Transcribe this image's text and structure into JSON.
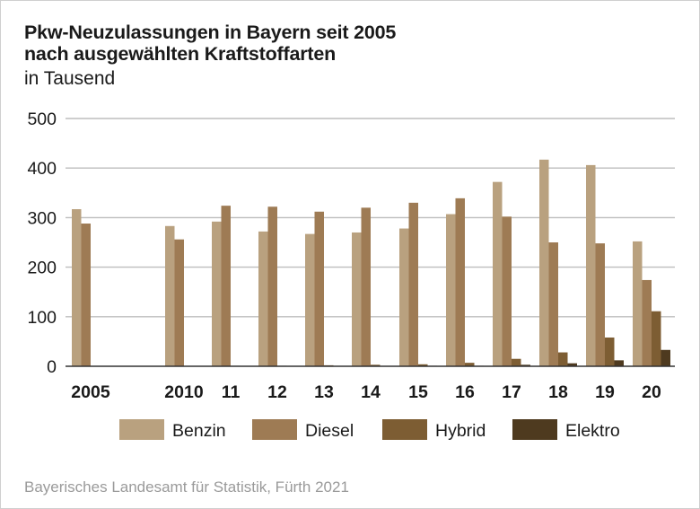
{
  "header": {
    "title_line1": "Pkw-Neuzulassungen in Bayern seit 2005",
    "title_line2": "nach ausgewählten Kraftstoffarten",
    "subtitle": "in Tausend"
  },
  "footer": {
    "source": "Bayerisches Landesamt für Statistik, Fürth 2021"
  },
  "colors": {
    "Benzin": "#b9a17f",
    "Diesel": "#9e7b54",
    "Hybrid": "#7d5d33",
    "Elektro": "#4e3a1f",
    "grid": "#bdbdbd",
    "axis": "#333333"
  },
  "chart_data": {
    "type": "bar",
    "title": "Pkw-Neuzulassungen in Bayern seit 2005 nach ausgewählten Kraftstoffarten",
    "subtitle": "in Tausend",
    "xlabel": "",
    "ylabel": "",
    "ylim": [
      0,
      500
    ],
    "yticks": [
      0,
      100,
      200,
      300,
      400,
      500
    ],
    "grid": true,
    "legend_position": "bottom",
    "categories": [
      "2005",
      "2010",
      "11",
      "12",
      "13",
      "14",
      "15",
      "16",
      "17",
      "18",
      "19",
      "20"
    ],
    "series": [
      {
        "name": "Benzin",
        "values": [
          317,
          283,
          292,
          272,
          267,
          270,
          278,
          307,
          372,
          417,
          406,
          252
        ]
      },
      {
        "name": "Diesel",
        "values": [
          288,
          256,
          324,
          322,
          312,
          320,
          330,
          339,
          302,
          250,
          248,
          174
        ]
      },
      {
        "name": "Hybrid",
        "values": [
          0,
          0,
          1,
          1,
          2,
          3,
          4,
          7,
          15,
          28,
          58,
          111
        ]
      },
      {
        "name": "Elektro",
        "values": [
          0,
          0,
          0,
          0,
          0,
          0,
          1,
          1,
          3,
          6,
          12,
          33
        ]
      }
    ]
  }
}
